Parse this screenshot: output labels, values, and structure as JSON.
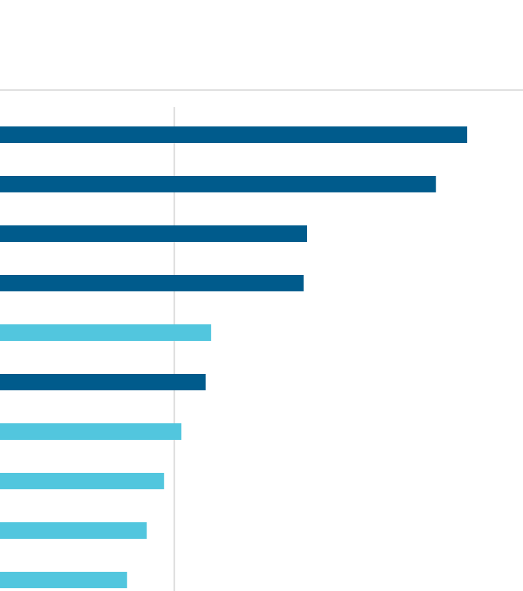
{
  "chart_data": {
    "type": "bar",
    "orientation": "horizontal",
    "title": "",
    "xlabel": "",
    "ylabel": "",
    "xlim": [
      0,
      100
    ],
    "grid": false,
    "reference_line": 37.3,
    "values": [
      100,
      93.3,
      65.7,
      65.0,
      45.2,
      44.0,
      38.8,
      35.1,
      31.4,
      27.2
    ],
    "highlight": [
      false,
      false,
      false,
      false,
      true,
      false,
      true,
      true,
      true,
      true
    ],
    "colors": {
      "primary": "#005b8c",
      "highlight": "#52c6de",
      "reference": "#dcdcdc"
    }
  }
}
